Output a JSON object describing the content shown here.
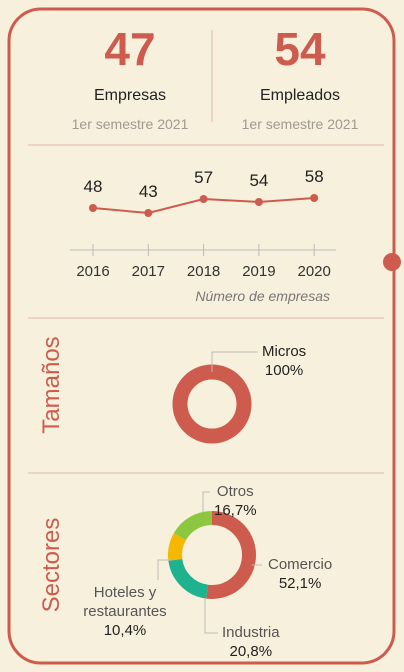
{
  "kpis": [
    {
      "value": 47,
      "label": "Empresas",
      "period": "1er semestre 2021"
    },
    {
      "value": 54,
      "label": "Empleados",
      "period": "1er semestre 2021"
    }
  ],
  "chart_data": [
    {
      "type": "line",
      "x_label": "Número de empresas",
      "categories": [
        "2016",
        "2017",
        "2018",
        "2019",
        "2020"
      ],
      "values": [
        48,
        43,
        57,
        54,
        58
      ],
      "color": "#cd5c4e"
    },
    {
      "type": "donut",
      "title": "Tamaños",
      "categories": [
        "Micros"
      ],
      "values": [
        100
      ],
      "value_labels": [
        "100%"
      ],
      "colors": [
        "#cd5c4e"
      ]
    },
    {
      "type": "donut",
      "title": "Sectores",
      "categories": [
        "Comercio",
        "Industria",
        "Hoteles y restaurantes",
        "Otros"
      ],
      "values": [
        52.1,
        20.8,
        10.4,
        16.7
      ],
      "value_labels": [
        "52,1%",
        "20,8%",
        "10,4%",
        "16,7%"
      ],
      "colors": [
        "#cd5c4e",
        "#1fb28f",
        "#f5b800",
        "#8dc63f"
      ]
    }
  ]
}
